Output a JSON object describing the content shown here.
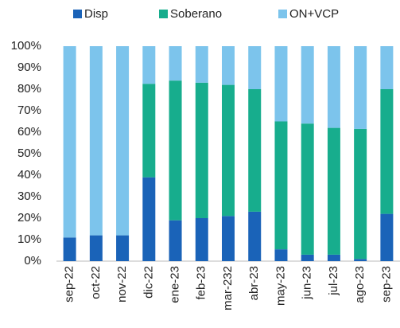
{
  "chart_data": {
    "type": "stacked_bar_100",
    "categories": [
      "sep-22",
      "oct-22",
      "nov-22",
      "dic-22",
      "ene-23",
      "feb-23",
      "mar-232",
      "abr-23",
      "may-23",
      "jun-23",
      "jul-23",
      "ago-23",
      "sep-23"
    ],
    "series": [
      {
        "name": "Disp",
        "color": "#1a63b8",
        "values": [
          11,
          12,
          12,
          39,
          19,
          20,
          21,
          23,
          5.5,
          3,
          3,
          1,
          22
        ]
      },
      {
        "name": "Soberano",
        "color": "#17ad8d",
        "values": [
          0,
          0,
          0,
          43.5,
          65,
          63,
          61,
          57,
          59.5,
          61,
          59,
          60.5,
          58
        ]
      },
      {
        "name": "ON+VCP",
        "color": "#7cc4ec",
        "values": [
          89,
          88,
          88,
          17.5,
          16,
          17,
          18,
          20,
          35,
          36,
          38,
          38.5,
          20
        ]
      }
    ],
    "ylim": [
      0,
      100
    ],
    "yticks": [
      {
        "value": 0,
        "label": "0%"
      },
      {
        "value": 10,
        "label": "10%"
      },
      {
        "value": 20,
        "label": "20%"
      },
      {
        "value": 30,
        "label": "30%"
      },
      {
        "value": 40,
        "label": "40%"
      },
      {
        "value": 50,
        "label": "50%"
      },
      {
        "value": 60,
        "label": "60%"
      },
      {
        "value": 70,
        "label": "70%"
      },
      {
        "value": 80,
        "label": "80%"
      },
      {
        "value": 90,
        "label": "90%"
      },
      {
        "value": 100,
        "label": "100%"
      }
    ],
    "legend": "top"
  }
}
